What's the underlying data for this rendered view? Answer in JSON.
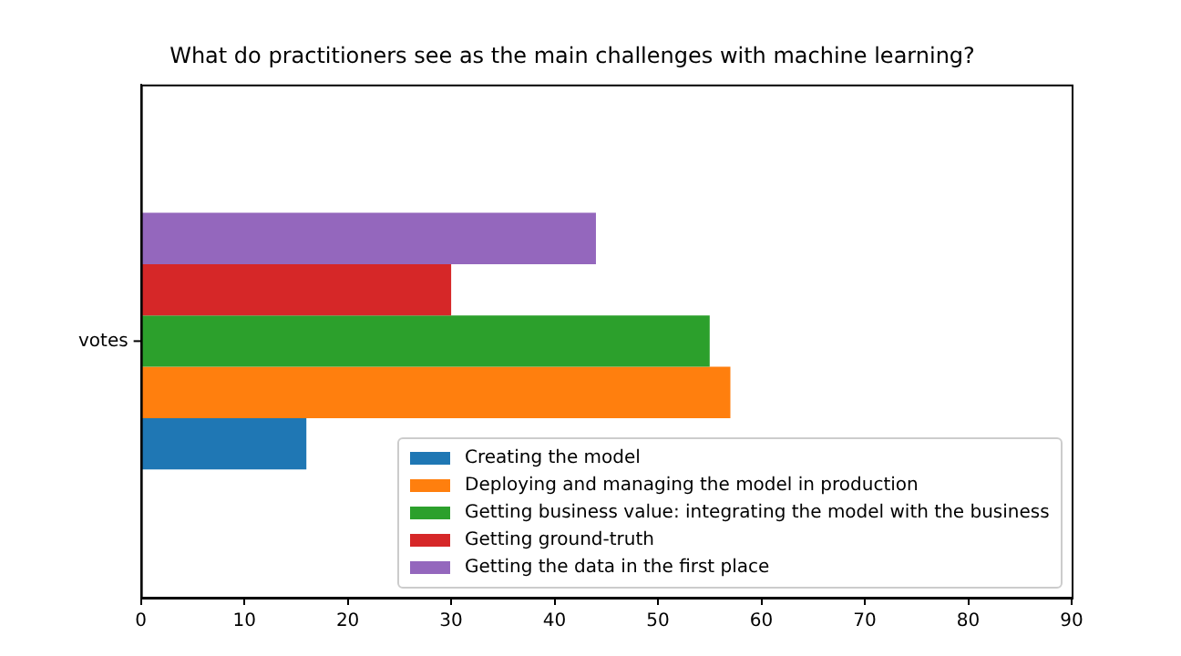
{
  "chart_data": {
    "type": "bar",
    "orientation": "horizontal",
    "title": "What do practitioners see as the main challenges with machine learning?",
    "categories": [
      "votes"
    ],
    "series": [
      {
        "name": "Creating the model",
        "color": "#1f77b4",
        "values": [
          16
        ]
      },
      {
        "name": "Deploying and managing the model in production",
        "color": "#ff7f0e",
        "values": [
          57
        ]
      },
      {
        "name": "Getting business value: integrating the model with the business",
        "color": "#2ca02c",
        "values": [
          55
        ]
      },
      {
        "name": "Getting ground-truth",
        "color": "#d62728",
        "values": [
          30
        ]
      },
      {
        "name": "Getting the data in the first place",
        "color": "#9467bd",
        "values": [
          44
        ]
      }
    ],
    "xlim": [
      0,
      90
    ],
    "xticks": [
      0,
      10,
      20,
      30,
      40,
      50,
      60,
      70,
      80,
      90
    ],
    "grid": false,
    "legend": "bottom right"
  }
}
